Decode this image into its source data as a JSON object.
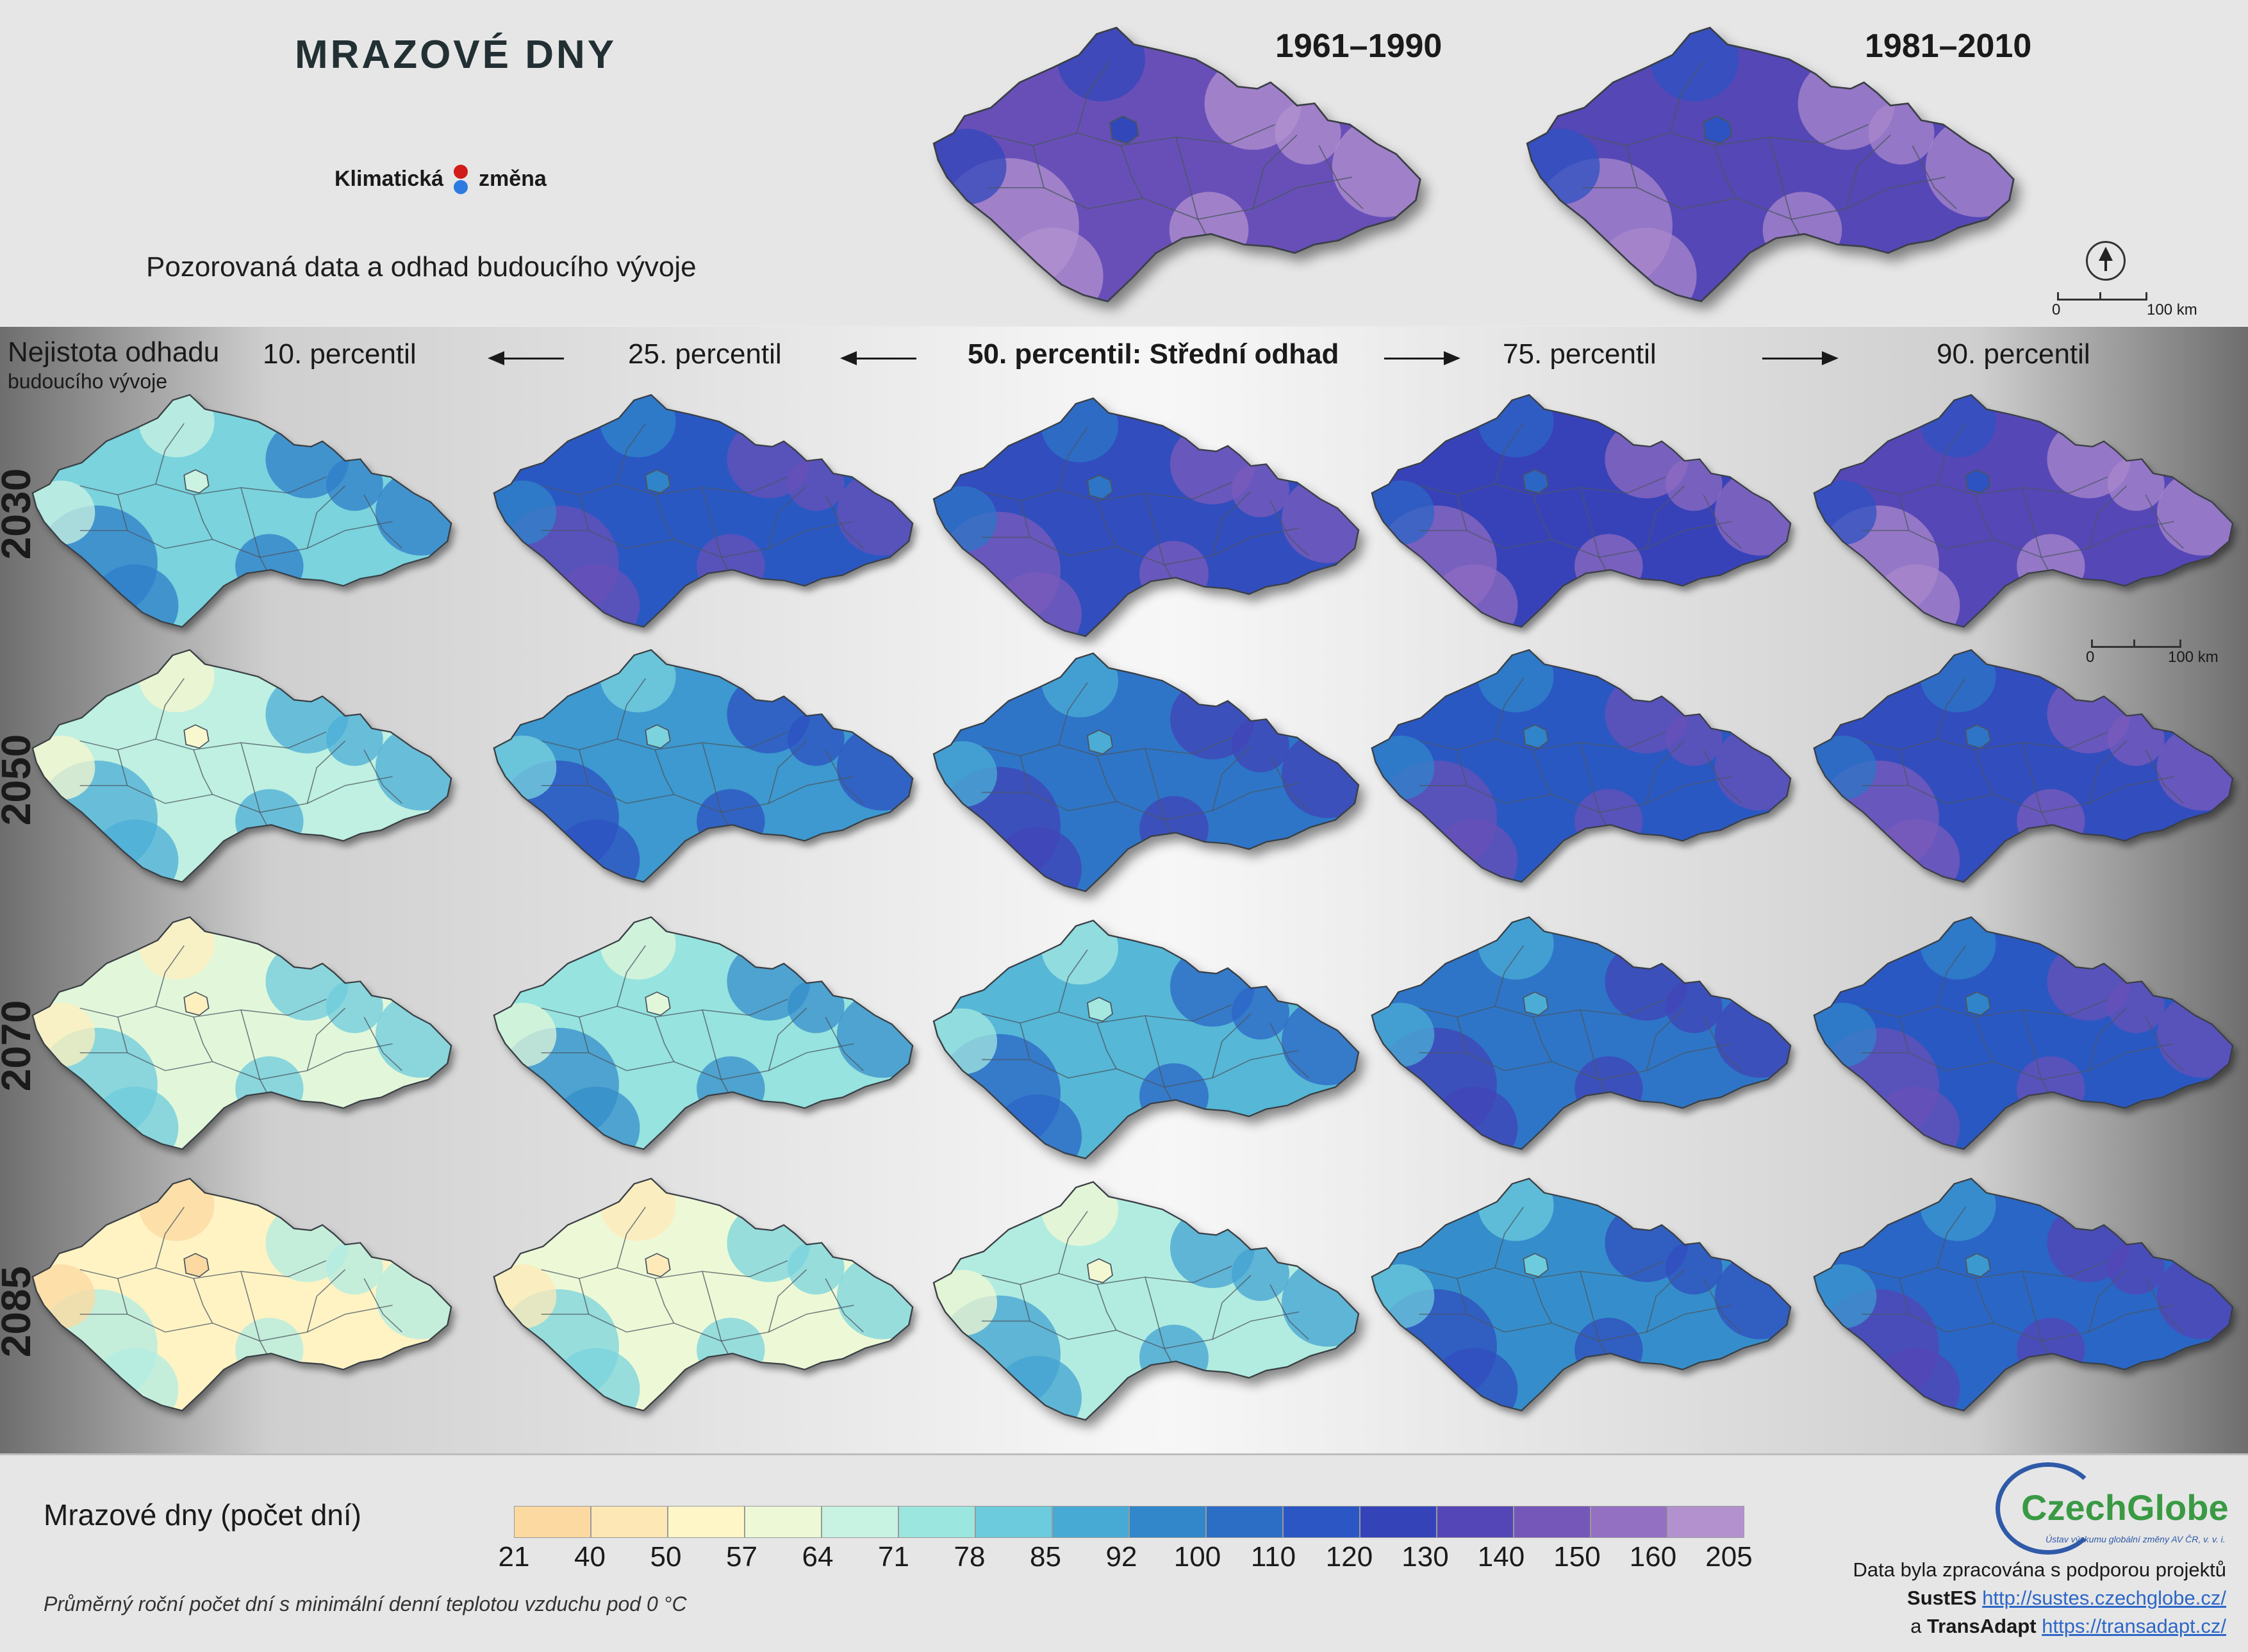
{
  "header": {
    "title": "MRAZOVÉ DNY",
    "logo_left": "Klimatická",
    "logo_right": "změna",
    "subtitle": "Pozorovaná data a odhad budoucího vývoje",
    "periods": [
      "1961–1990",
      "1981–2010"
    ]
  },
  "uncertainty": {
    "label": "Nejistota odhadu",
    "sublabel": "budoucího vývoje"
  },
  "columns": [
    {
      "label": "10. percentil",
      "bold": false
    },
    {
      "label": "25. percentil",
      "bold": false
    },
    {
      "label": "50. percentil: Střední odhad",
      "bold": true
    },
    {
      "label": "75. percentil",
      "bold": false
    },
    {
      "label": "90. percentil",
      "bold": false
    }
  ],
  "rows": [
    "2030",
    "2050",
    "2070",
    "2085"
  ],
  "map_levels": {
    "observed": [
      0.84,
      0.8
    ],
    "scenarios": [
      [
        0.38,
        0.66,
        0.7,
        0.74,
        0.8
      ],
      [
        0.28,
        0.5,
        0.58,
        0.66,
        0.7
      ],
      [
        0.22,
        0.34,
        0.44,
        0.58,
        0.66
      ],
      [
        0.12,
        0.2,
        0.3,
        0.52,
        0.62
      ]
    ]
  },
  "scale_bar": {
    "start": "0",
    "end": "100 km"
  },
  "legend": {
    "title": "Mrazové dny (počet dní)",
    "ticks": [
      "21",
      "40",
      "50",
      "57",
      "64",
      "71",
      "78",
      "85",
      "92",
      "100",
      "110",
      "120",
      "130",
      "140",
      "150",
      "160",
      "205"
    ],
    "colors": [
      "#fcd9a0",
      "#fde7b4",
      "#fff6c8",
      "#edf9d6",
      "#c8f2e2",
      "#9be6df",
      "#6ccbdc",
      "#47aad4",
      "#3187c9",
      "#2c6dc6",
      "#2b56c3",
      "#3443b8",
      "#5446b6",
      "#7556b9",
      "#9470c2",
      "#b391cf"
    ],
    "note": "Průměrný roční počet dní s minimální denní teplotou vzduchu pod 0 °C"
  },
  "credits": {
    "org": "CzechGlobe",
    "institute": "Ústav výzkumu globální změny AV ČR, v. v. i.",
    "line1": "Data byla zpracována s podporou projektů",
    "p1_name": "SustES",
    "p1_url": "http://sustes.czechglobe.cz/",
    "p2_prefix": "a",
    "p2_name": "TransAdapt",
    "p2_url": "https://transadapt.cz/"
  }
}
